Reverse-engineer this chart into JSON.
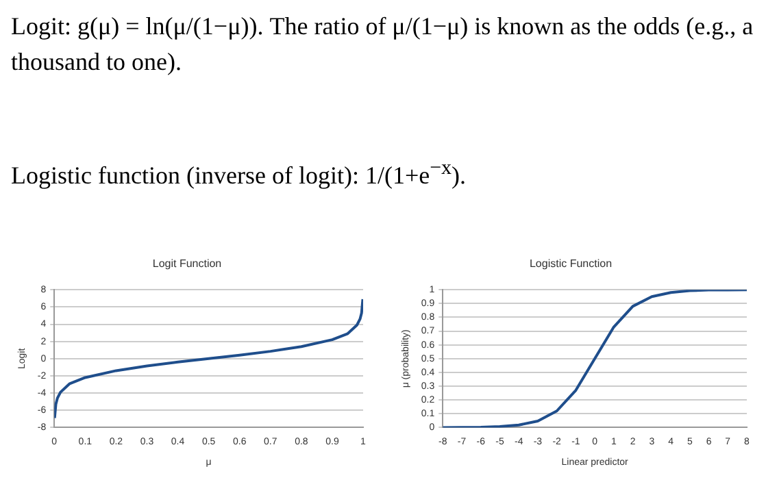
{
  "chart_data": [
    {
      "type": "other",
      "annotations": [
        "Logit: g(μ) = ln(μ/(1−μ)). The ratio of μ/(1−μ) is known as the odds (e.g., a thousand to one).",
        "Logistic function (inverse of logit): 1/(1+e$^{−x}$)."
      ]
    },
    {
      "type": "line",
      "title": "Logit Function",
      "xlabel": "μ",
      "ylabel": "Logit",
      "color": "#1f4e8c",
      "grid": "y",
      "x": [
        0.001,
        0.005,
        0.01,
        0.02,
        0.05,
        0.1,
        0.2,
        0.3,
        0.4,
        0.5,
        0.6,
        0.7,
        0.8,
        0.9,
        0.95,
        0.98,
        0.99,
        0.995,
        0.999
      ],
      "values": [
        -6.9,
        -5.3,
        -4.6,
        -3.9,
        -2.9,
        -2.2,
        -1.4,
        -0.85,
        -0.4,
        0,
        0.4,
        0.85,
        1.4,
        2.2,
        2.9,
        3.9,
        4.6,
        5.3,
        6.9
      ],
      "xlim": [
        0,
        1
      ],
      "xticks": [
        0,
        0.1,
        0.2,
        0.3,
        0.4,
        0.5,
        0.6,
        0.7,
        0.8,
        0.9,
        1
      ],
      "ylim": [
        -8,
        8
      ],
      "yticks": [
        -8,
        -6,
        -4,
        -2,
        0,
        2,
        4,
        6,
        8
      ]
    },
    {
      "type": "line",
      "title": "Logistic Function",
      "xlabel": "Linear predictor",
      "ylabel": "μ (probability)",
      "color": "#1f4e8c",
      "grid": "y",
      "x": [
        -8,
        -7,
        -6,
        -5,
        -4,
        -3,
        -2,
        -1,
        0,
        1,
        2,
        3,
        4,
        5,
        6,
        7,
        8
      ],
      "values": [
        0,
        0.001,
        0.002,
        0.007,
        0.018,
        0.047,
        0.12,
        0.27,
        0.5,
        0.73,
        0.88,
        0.95,
        0.98,
        0.993,
        0.998,
        0.999,
        1
      ],
      "xlim": [
        -8,
        8
      ],
      "xticks": [
        -8,
        -7,
        -6,
        -5,
        -4,
        -3,
        -2,
        -1,
        0,
        1,
        2,
        3,
        4,
        5,
        6,
        7,
        8
      ],
      "ylim": [
        0,
        1
      ],
      "yticks": [
        0,
        0.1,
        0.2,
        0.3,
        0.4,
        0.5,
        0.6,
        0.7,
        0.8,
        0.9,
        1
      ]
    }
  ]
}
